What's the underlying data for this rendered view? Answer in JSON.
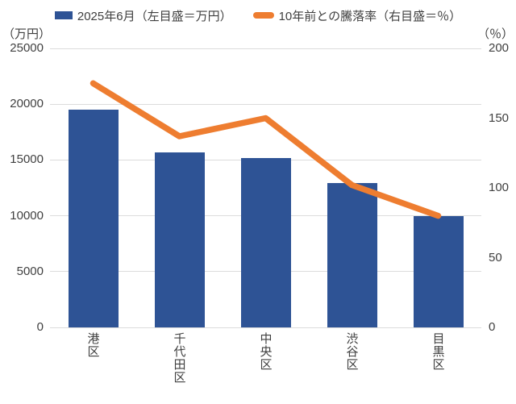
{
  "chart_data": {
    "type": "combo",
    "title": "",
    "categories": [
      "港区",
      "千代田区",
      "中央区",
      "渋谷区",
      "目黒区"
    ],
    "series": [
      {
        "name": "2025年6月（左目盛＝万円）",
        "type": "bar",
        "axis": "left",
        "color": "#2E5395",
        "values": [
          19500,
          15700,
          15150,
          12900,
          9950
        ]
      },
      {
        "name": "10年前との騰落率（右目盛＝％）",
        "type": "line",
        "axis": "right",
        "color": "#EE7D30",
        "values": [
          175,
          137,
          150,
          102,
          80
        ]
      }
    ],
    "left_axis": {
      "unit": "（万円）",
      "min": 0,
      "max": 25000,
      "ticks": [
        25000,
        20000,
        15000,
        10000,
        5000,
        0
      ]
    },
    "right_axis": {
      "unit": "（％）",
      "min": 0,
      "max": 200,
      "ticks": [
        200,
        150,
        100,
        50,
        0
      ]
    },
    "grid": true,
    "gridline_color": "#dcdcdc",
    "legend_position": "top"
  }
}
